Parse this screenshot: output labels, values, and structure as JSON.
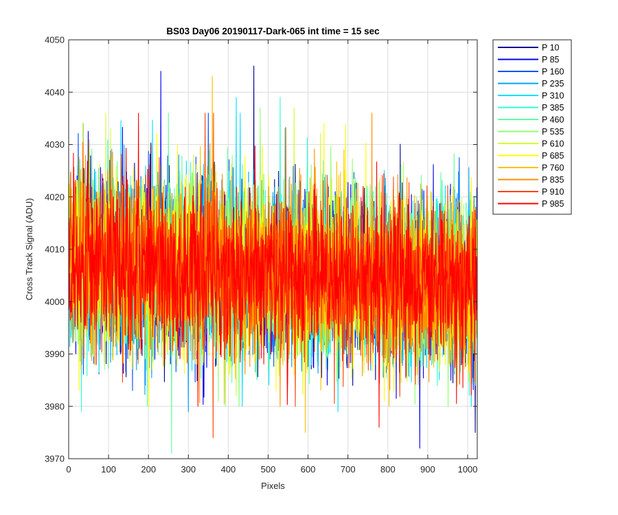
{
  "chart_data": {
    "type": "line",
    "title": "BS03 Day06 20190117-Dark-065 int time = 15 sec",
    "xlabel": "Pixels",
    "ylabel": "Cross Track Signal (ADU)",
    "xlim": [
      0,
      1024
    ],
    "ylim": [
      3970,
      4050
    ],
    "xticks": [
      "0",
      "100",
      "200",
      "300",
      "400",
      "500",
      "600",
      "700",
      "800",
      "900",
      "1000"
    ],
    "yticks": [
      "3970",
      "3980",
      "3990",
      "4000",
      "4010",
      "4020",
      "4030",
      "4040",
      "4050"
    ],
    "grid": true,
    "legend_position": "outside-top-right",
    "noise_model": {
      "mean_start": 4008,
      "mean_end": 4003,
      "std": 8,
      "points_per_series": 1024
    },
    "series": [
      {
        "name": "P 10",
        "color": "#00008f",
        "extremes": [
          {
            "x": 464,
            "y": 4045
          },
          {
            "x": 1019,
            "y": 3975
          }
        ]
      },
      {
        "name": "P 85",
        "color": "#0000ef",
        "extremes": [
          {
            "x": 231,
            "y": 4044
          },
          {
            "x": 880,
            "y": 3972
          }
        ]
      },
      {
        "name": "P 160",
        "color": "#0050ff",
        "extremes": [
          {
            "x": 350,
            "y": 4036
          },
          {
            "x": 160,
            "y": 3983
          }
        ]
      },
      {
        "name": "P 235",
        "color": "#00a0ff",
        "extremes": [
          {
            "x": 36,
            "y": 4034
          },
          {
            "x": 300,
            "y": 3979
          }
        ]
      },
      {
        "name": "P 310",
        "color": "#00dfff",
        "extremes": [
          {
            "x": 420,
            "y": 4039
          },
          {
            "x": 675,
            "y": 3979
          }
        ]
      },
      {
        "name": "P 385",
        "color": "#30ffcf",
        "extremes": [
          {
            "x": 530,
            "y": 4039
          },
          {
            "x": 32,
            "y": 3979
          }
        ]
      },
      {
        "name": "P 460",
        "color": "#60ff9f",
        "extremes": [
          {
            "x": 250,
            "y": 4036
          },
          {
            "x": 258,
            "y": 3971
          }
        ]
      },
      {
        "name": "P 535",
        "color": "#8fff70",
        "extremes": [
          {
            "x": 480,
            "y": 4037
          },
          {
            "x": 375,
            "y": 3981
          }
        ]
      },
      {
        "name": "P 610",
        "color": "#cfff30",
        "extremes": [
          {
            "x": 565,
            "y": 4037
          },
          {
            "x": 420,
            "y": 3982
          }
        ]
      },
      {
        "name": "P 685",
        "color": "#ffff00",
        "extremes": [
          {
            "x": 640,
            "y": 4034
          },
          {
            "x": 520,
            "y": 3983
          }
        ]
      },
      {
        "name": "P 760",
        "color": "#ffbf00",
        "extremes": [
          {
            "x": 360,
            "y": 4043
          },
          {
            "x": 593,
            "y": 3975
          }
        ]
      },
      {
        "name": "P 835",
        "color": "#ff8f00",
        "extremes": [
          {
            "x": 760,
            "y": 4036
          },
          {
            "x": 530,
            "y": 3980
          }
        ]
      },
      {
        "name": "P 910",
        "color": "#ff4000",
        "extremes": [
          {
            "x": 363,
            "y": 4036
          },
          {
            "x": 362,
            "y": 3974
          }
        ]
      },
      {
        "name": "P 985",
        "color": "#ff0000",
        "extremes": [
          {
            "x": 175,
            "y": 4036
          },
          {
            "x": 778,
            "y": 3976
          }
        ]
      }
    ]
  }
}
